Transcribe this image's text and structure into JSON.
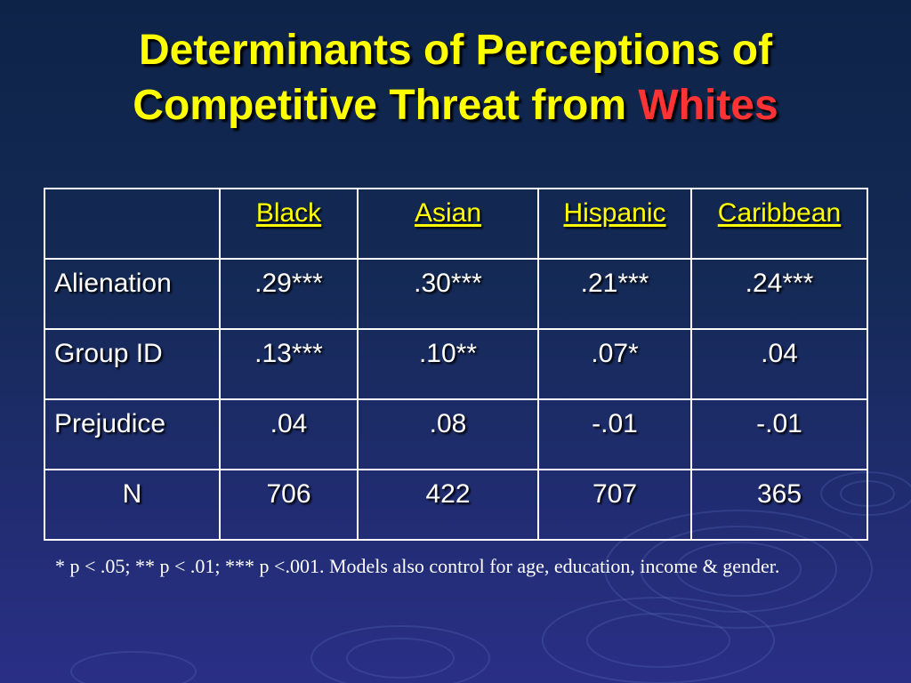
{
  "slide": {
    "title_line1": "Determinants of Perceptions of",
    "title_line2_prefix": "Competitive Threat from ",
    "title_accent": "Whites",
    "table": {
      "corner": "",
      "columns": [
        "Black",
        "Asian",
        "Hispanic",
        "Caribbean"
      ],
      "rows": [
        {
          "label": "Alienation",
          "values": [
            ".29***",
            ".30***",
            ".21***",
            ".24***"
          ]
        },
        {
          "label": "Group ID",
          "values": [
            ".13***",
            ".10**",
            ".07*",
            ".04"
          ]
        },
        {
          "label": "Prejudice",
          "values": [
            ".04",
            ".08",
            "-.01",
            "-.01"
          ]
        },
        {
          "label": "N",
          "values": [
            "706",
            "422",
            "707",
            "365"
          ]
        }
      ]
    },
    "footnote": "* p < .05; ** p < .01; *** p <.001.  Models also control for age, education, income & gender."
  },
  "colors": {
    "title": "#ffff00",
    "accent": "#ff3333",
    "header_text": "#ffff00",
    "body_text": "#ffffff",
    "background_top": "#0d2348",
    "background_bottom": "#2a2f86"
  }
}
